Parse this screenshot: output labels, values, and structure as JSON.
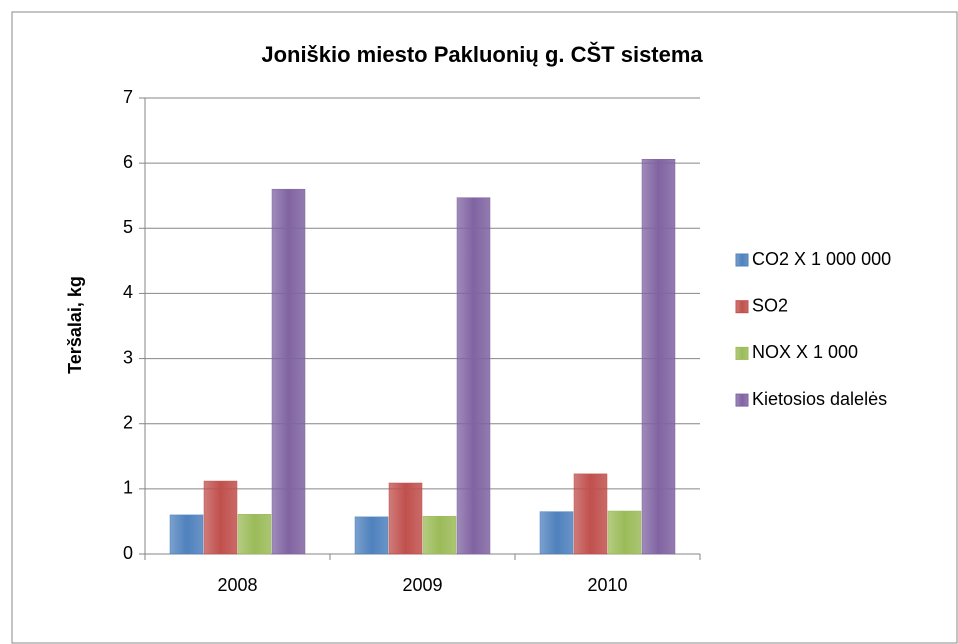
{
  "chart_data": {
    "type": "bar",
    "title": "Joniškio miesto Pakluonių g. CŠT sistema",
    "y_label": "Teršalai, kg",
    "categories": [
      "2008",
      "2009",
      "2010"
    ],
    "series": [
      {
        "name": "CO2 X 1 000 000",
        "color": "#4f81bd",
        "values": [
          0.6,
          0.57,
          0.65
        ]
      },
      {
        "name": "SO2",
        "color": "#c0504d",
        "values": [
          1.12,
          1.09,
          1.23
        ]
      },
      {
        "name": "NOX X 1 000",
        "color": "#9bbb59",
        "values": [
          0.61,
          0.58,
          0.66
        ]
      },
      {
        "name": "Kietosios dalelės",
        "color": "#8064a2",
        "values": [
          5.6,
          5.47,
          6.06
        ]
      }
    ],
    "ylim": [
      0,
      7
    ],
    "yticks": [
      0,
      1,
      2,
      3,
      4,
      5,
      6,
      7
    ],
    "grid": true,
    "legend": "right"
  }
}
